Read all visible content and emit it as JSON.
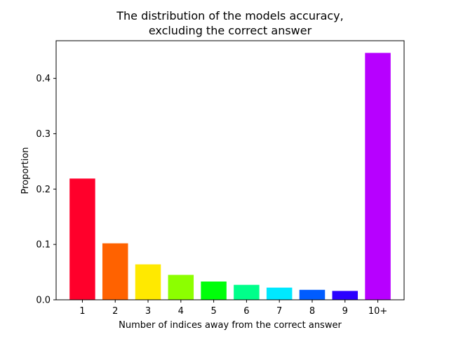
{
  "chart_data": {
    "type": "bar",
    "title_lines": [
      "The distribution of the models accuracy,",
      "excluding the correct answer"
    ],
    "xlabel": "Number of indices away from the correct answer",
    "ylabel": "Proportion",
    "categories": [
      "1",
      "2",
      "3",
      "4",
      "5",
      "6",
      "7",
      "8",
      "9",
      "10+"
    ],
    "values": [
      0.219,
      0.102,
      0.064,
      0.045,
      0.033,
      0.027,
      0.022,
      0.018,
      0.016,
      0.446
    ],
    "colors": [
      "#ff002b",
      "#ff6200",
      "#ffe900",
      "#8cff00",
      "#00ff0a",
      "#00ff8a",
      "#00e8ff",
      "#005cff",
      "#2a00ff",
      "#b700ff"
    ],
    "ylim": [
      0,
      0.468
    ],
    "yticks": [
      0.0,
      0.1,
      0.2,
      0.3,
      0.4
    ],
    "ytick_labels": [
      "0.0",
      "0.1",
      "0.2",
      "0.3",
      "0.4"
    ],
    "grid": false,
    "legend": "none"
  }
}
